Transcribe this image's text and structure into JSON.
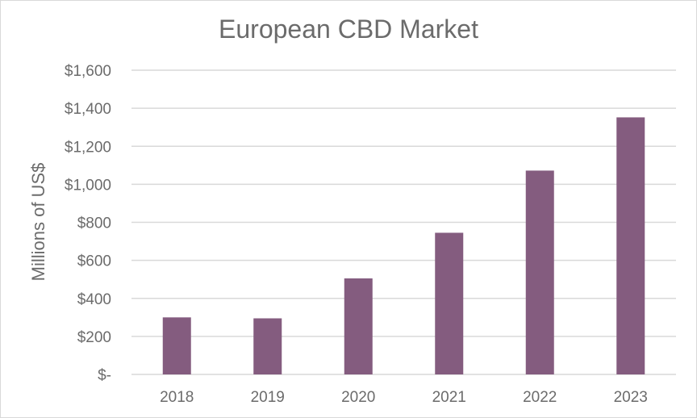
{
  "chart_data": {
    "type": "bar",
    "title": "European CBD Market",
    "xlabel": "",
    "ylabel": "Millions of US$",
    "categories": [
      "2018",
      "2019",
      "2020",
      "2021",
      "2022",
      "2023"
    ],
    "values": [
      300,
      295,
      505,
      745,
      1072,
      1352
    ],
    "ylim": [
      0,
      1600
    ],
    "yticks": [
      0,
      200,
      400,
      600,
      800,
      1000,
      1200,
      1400,
      1600
    ],
    "ytick_labels": [
      "$-",
      "$200",
      "$400",
      "$600",
      "$800",
      "$1,000",
      "$1,200",
      "$1,400",
      "$1,600"
    ],
    "grid": true,
    "legend": "none",
    "bar_color": "#845c7f",
    "grid_color": "#d9d9d9"
  }
}
